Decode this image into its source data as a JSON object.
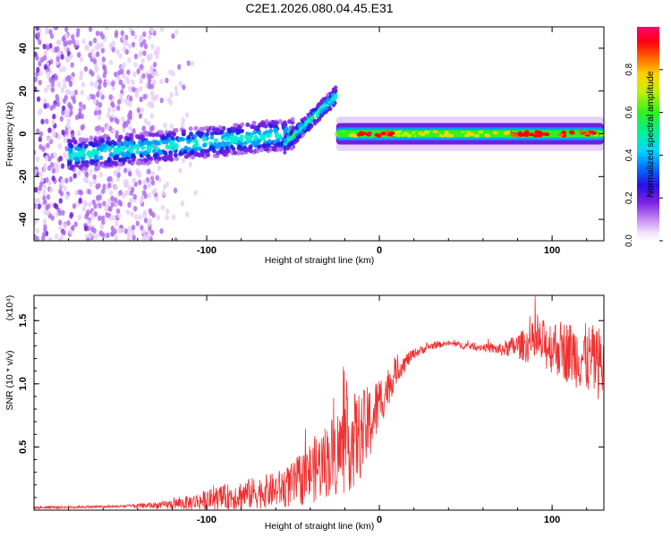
{
  "title": "C2E1.2026.080.04.45.E31",
  "chart_data": [
    {
      "type": "heatmap",
      "name": "spectrogram",
      "xlabel": "Height of straight line (km)",
      "ylabel": "Frequency (Hz)",
      "xlim": [
        -200,
        130
      ],
      "ylim": [
        -50,
        50
      ],
      "xticks": [
        -100,
        0,
        100
      ],
      "yticks": [
        -40,
        -20,
        0,
        20,
        40
      ],
      "colorbar": {
        "label": "Normalized spectral amplitude",
        "range": [
          0,
          1
        ],
        "ticks": [
          0.0,
          0.2,
          0.4,
          0.6,
          0.8
        ],
        "tick_labels": [
          "0.0",
          "0.2",
          "0.4",
          "0.6",
          "0.8"
        ],
        "colors": [
          "#ffffff",
          "#e8d0f8",
          "#b070f0",
          "#7020e0",
          "#2020e0",
          "#00a0ff",
          "#00f0d0",
          "#30f020",
          "#c0f000",
          "#ffd000",
          "#ff6000",
          "#ff0000",
          "#ff0060"
        ]
      },
      "features": [
        {
          "segment": "scatter",
          "x": [
            -200,
            -130
          ],
          "freq_range": [
            -50,
            50
          ],
          "amplitude": 0.15
        },
        {
          "segment": "band",
          "x": [
            -180,
            -50
          ],
          "freq_center": [
            -10,
            0
          ],
          "amplitude": 0.4
        },
        {
          "segment": "drift",
          "x": [
            -55,
            -25
          ],
          "freq_center": [
            -5,
            18
          ],
          "amplitude": 0.45
        },
        {
          "segment": "tone",
          "x": [
            -25,
            130
          ],
          "freq_center": 0,
          "amplitude": 0.6
        }
      ]
    },
    {
      "type": "line",
      "name": "snr",
      "xlabel": "Height of straight line (km)",
      "ylabel": "SNR (10 * v/v)",
      "scale_label": "(x10⁴)",
      "xlim": [
        -200,
        130
      ],
      "ylim": [
        0,
        1.7
      ],
      "xticks": [
        -100,
        0,
        100
      ],
      "yticks": [
        0.5,
        1.0,
        1.5
      ],
      "ytick_labels": [
        "0.5",
        "1.0",
        "1.5"
      ],
      "color": "#ee3030",
      "envelope": {
        "x": [
          -200,
          -150,
          -125,
          -110,
          -100,
          -90,
          -80,
          -60,
          -50,
          -40,
          -30,
          -25,
          -20,
          -15,
          -10,
          -5,
          0,
          10,
          20,
          30,
          40,
          50,
          60,
          70,
          80,
          90,
          100,
          110,
          120,
          130
        ],
        "mean": [
          0.02,
          0.03,
          0.04,
          0.06,
          0.08,
          0.1,
          0.12,
          0.16,
          0.2,
          0.3,
          0.4,
          0.45,
          0.5,
          0.55,
          0.6,
          0.7,
          0.85,
          1.1,
          1.24,
          1.3,
          1.32,
          1.3,
          1.29,
          1.27,
          1.3,
          1.32,
          1.3,
          1.25,
          1.2,
          1.15
        ],
        "spread": [
          0.01,
          0.01,
          0.03,
          0.06,
          0.08,
          0.1,
          0.12,
          0.14,
          0.18,
          0.25,
          0.3,
          0.35,
          0.38,
          0.38,
          0.35,
          0.3,
          0.22,
          0.1,
          0.04,
          0.03,
          0.02,
          0.03,
          0.03,
          0.05,
          0.1,
          0.18,
          0.22,
          0.25,
          0.28,
          0.3
        ]
      }
    }
  ]
}
